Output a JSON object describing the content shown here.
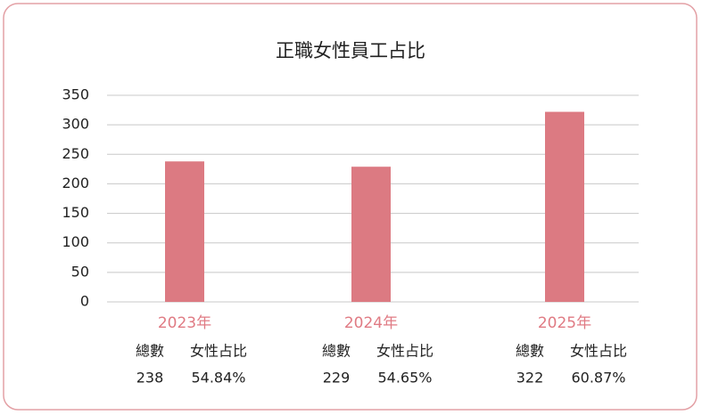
{
  "chart_data": {
    "type": "bar",
    "title": "正職女性員工占比",
    "categories": [
      "2023年",
      "2024年",
      "2025年"
    ],
    "values": [
      238,
      229,
      322
    ],
    "color": "#dc7a82",
    "ylim": [
      0,
      350
    ],
    "yticks": [
      0,
      50,
      100,
      150,
      200,
      250,
      300,
      350
    ],
    "grid": true
  },
  "table": {
    "headers": [
      "總數",
      "女性占比"
    ],
    "shares": [
      "54.84%",
      "54.65%",
      "60.87%"
    ]
  }
}
